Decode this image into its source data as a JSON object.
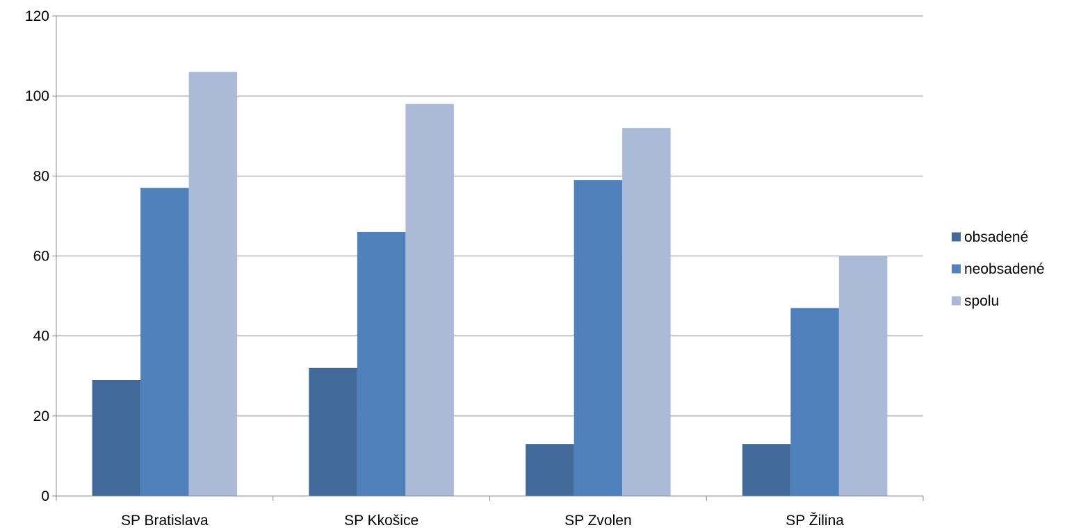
{
  "chart_data": {
    "type": "bar",
    "title": "",
    "xlabel": "",
    "ylabel": "",
    "categories": [
      "SP Bratislava",
      "SP Kkošice",
      "SP Zvolen",
      "SP Žilina"
    ],
    "series": [
      {
        "name": "obsadené",
        "values": [
          29,
          32,
          13,
          13
        ],
        "color": "#416999"
      },
      {
        "name": "neobsadené",
        "values": [
          77,
          66,
          79,
          47
        ],
        "color": "#4f81bd"
      },
      {
        "name": "spolu",
        "values": [
          106,
          98,
          92,
          60
        ],
        "color": "#aabad7"
      }
    ],
    "ylim": [
      0,
      120
    ],
    "yticks": [
      0,
      20,
      40,
      60,
      80,
      100,
      120
    ],
    "grid": true,
    "legend_position": "right"
  }
}
